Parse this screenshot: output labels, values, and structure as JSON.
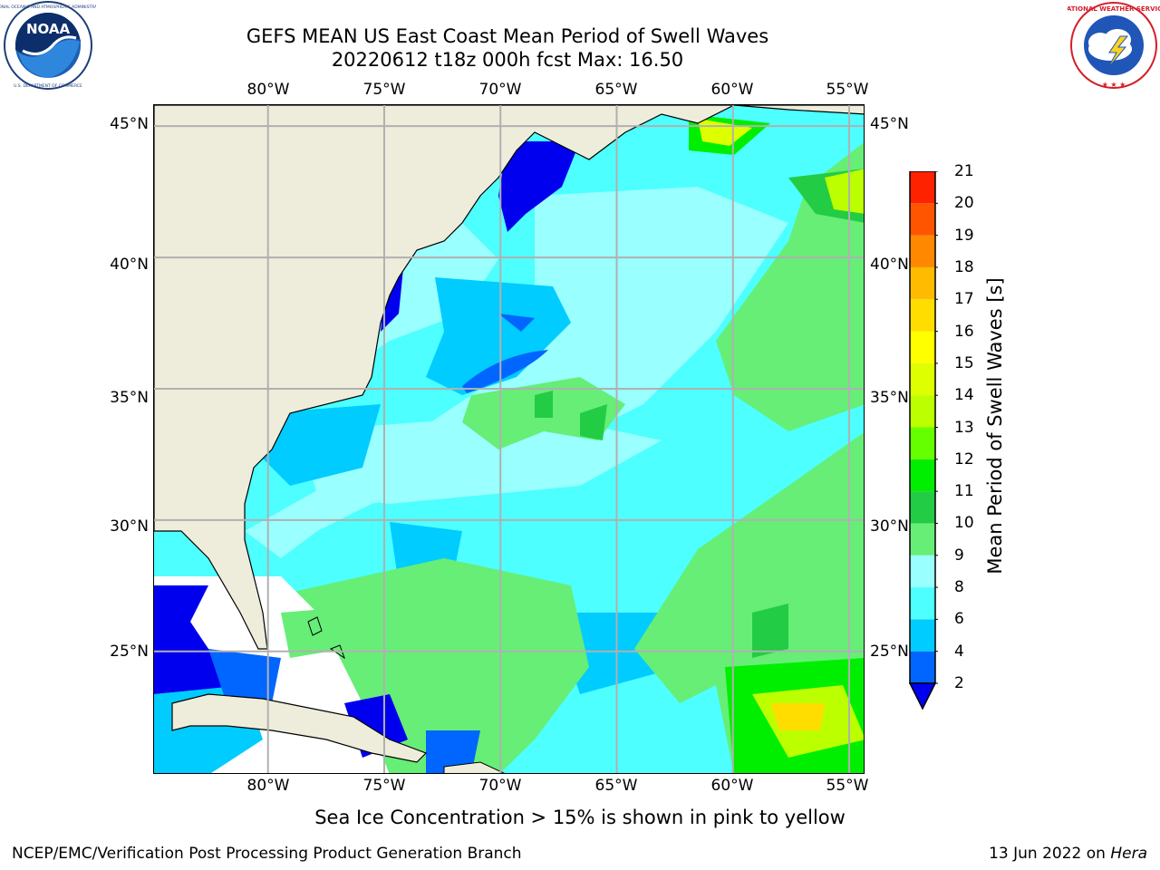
{
  "header": {
    "title_line1": "GEFS MEAN US East Coast Mean Period of Swell Waves",
    "title_line2": "20220612 t18z 000h fcst   Max: 16.50"
  },
  "logos": {
    "left": {
      "name": "NOAA",
      "text": "NOAA",
      "ring_text": "NATIONAL OCEANIC AND ATMOSPHERIC ADMINISTRATION · U.S. DEPARTMENT OF COMMERCE"
    },
    "right": {
      "name": "National Weather Service",
      "ring_text": "NATIONAL WEATHER SERVICE"
    }
  },
  "map": {
    "lon_labels": [
      "80°W",
      "75°W",
      "70°W",
      "65°W",
      "60°W",
      "55°W"
    ],
    "lat_labels": [
      "45°N",
      "40°N",
      "35°N",
      "30°N",
      "25°N"
    ],
    "lon_values": [
      -80,
      -75,
      -70,
      -65,
      -60,
      -55
    ],
    "lat_values": [
      45,
      40,
      35,
      30,
      25
    ],
    "extent": {
      "lon_min": -84.9,
      "lon_max": -54.3,
      "lat_min": 20.3,
      "lat_max": 45.8
    },
    "colors": {
      "land": "#eeeddb",
      "grid": "#b0b0b0",
      "coast": "#000000",
      "no_data": "#ffffff"
    }
  },
  "colorbar": {
    "title": "Mean Period of Swell Waves [s]",
    "tick_labels": [
      "2",
      "4",
      "6",
      "8",
      "9",
      "10",
      "11",
      "12",
      "13",
      "14",
      "15",
      "16",
      "17",
      "18",
      "19",
      "20",
      "21"
    ],
    "levels": [
      2,
      4,
      6,
      8,
      9,
      10,
      11,
      12,
      13,
      14,
      15,
      16,
      17,
      18,
      19,
      20,
      21
    ],
    "colors": [
      "#0066ff",
      "#00ccff",
      "#4dffff",
      "#99ffff",
      "#66ee77",
      "#22cc44",
      "#00ee00",
      "#66ff00",
      "#bbff00",
      "#ddff00",
      "#ffff00",
      "#ffdd00",
      "#ffbb00",
      "#ff8800",
      "#ff5500",
      "#ff2200"
    ],
    "extend_min_color": "#0000ee"
  },
  "notes": {
    "ice": "Sea Ice Concentration > 15% is shown in pink to yellow"
  },
  "footer": {
    "left": "NCEP/EMC/Verification Post Processing Product Generation Branch",
    "date": "13 Jun 2022 on ",
    "host": "Hera"
  }
}
